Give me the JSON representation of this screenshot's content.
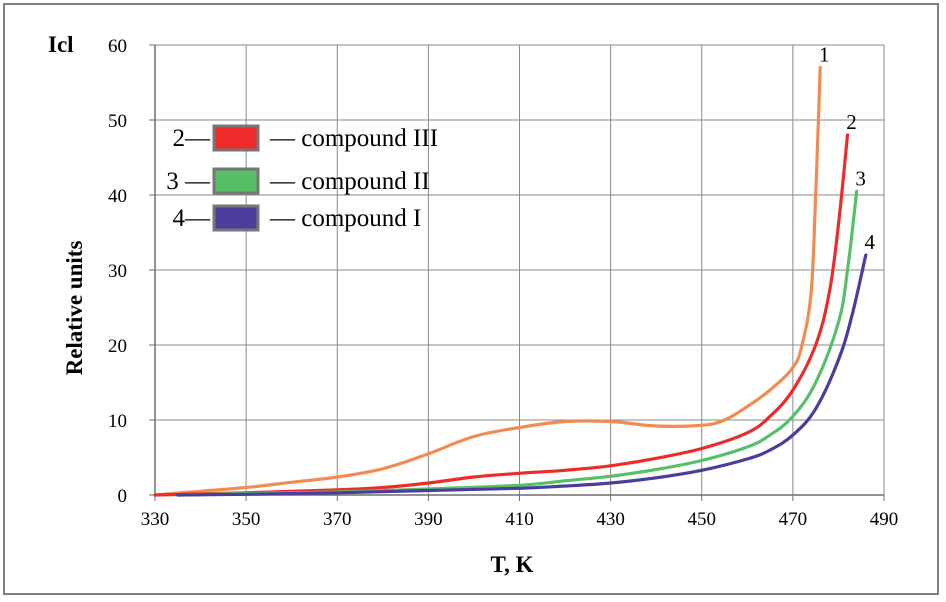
{
  "chart_data": {
    "type": "line",
    "title": "",
    "xlabel": "T, K",
    "ylabel": "Relative units",
    "ylabel_top": "Icl",
    "xlim": [
      330,
      490
    ],
    "ylim": [
      0,
      60
    ],
    "xticks": [
      330,
      350,
      370,
      390,
      410,
      430,
      450,
      470,
      490
    ],
    "yticks": [
      0,
      10,
      20,
      30,
      40,
      50,
      60
    ],
    "grid": true,
    "legend_position": "top-left",
    "legend": [
      {
        "prefix": "2—",
        "label": "— compound  III",
        "color": "#ee2a2a"
      },
      {
        "prefix": "3 —",
        "label": "— compound II",
        "color": "#57c067"
      },
      {
        "prefix": "4—",
        "label": "— compound I",
        "color": "#4b3d9c"
      }
    ],
    "series": [
      {
        "id": "1",
        "color": "#f28b52",
        "x": [
          330,
          340,
          350,
          360,
          370,
          380,
          390,
          400,
          410,
          420,
          430,
          440,
          450,
          455,
          460,
          465,
          470,
          472,
          474,
          475,
          476
        ],
        "y": [
          0,
          0.5,
          1.0,
          1.7,
          2.4,
          3.5,
          5.5,
          7.8,
          9.0,
          9.8,
          9.8,
          9.2,
          9.3,
          10.0,
          11.8,
          14.0,
          17.0,
          20.0,
          27.0,
          40.0,
          57.0
        ]
      },
      {
        "id": "2",
        "color": "#ee2a2a",
        "x": [
          330,
          350,
          370,
          380,
          390,
          400,
          410,
          420,
          430,
          440,
          450,
          460,
          465,
          470,
          475,
          478,
          480,
          482
        ],
        "y": [
          0,
          0.3,
          0.7,
          1.0,
          1.6,
          2.4,
          2.9,
          3.3,
          3.9,
          4.9,
          6.2,
          8.3,
          10.5,
          14.0,
          20.0,
          27.0,
          36.0,
          48.0
        ]
      },
      {
        "id": "3",
        "color": "#57c067",
        "x": [
          335,
          350,
          370,
          390,
          410,
          420,
          430,
          440,
          450,
          460,
          465,
          470,
          475,
          480,
          482,
          484
        ],
        "y": [
          0,
          0.2,
          0.4,
          0.8,
          1.3,
          1.9,
          2.5,
          3.4,
          4.6,
          6.4,
          8.0,
          10.5,
          15.0,
          23.0,
          30.0,
          40.5
        ]
      },
      {
        "id": "4",
        "color": "#4b3d9c",
        "x": [
          335,
          350,
          370,
          390,
          410,
          420,
          430,
          440,
          450,
          460,
          465,
          470,
          475,
          480,
          483,
          486
        ],
        "y": [
          0,
          0.1,
          0.3,
          0.6,
          0.9,
          1.2,
          1.6,
          2.3,
          3.3,
          4.8,
          6.0,
          8.0,
          11.5,
          18.0,
          24.0,
          32.0
        ]
      }
    ]
  }
}
